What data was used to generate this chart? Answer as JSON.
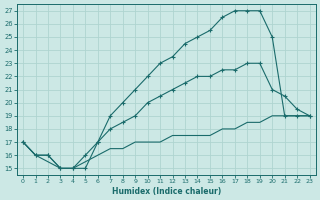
{
  "xlabel": "Humidex (Indice chaleur)",
  "bg_color": "#cce8e5",
  "line_color": "#1a6b6b",
  "grid_color": "#afd4d0",
  "xlim": [
    -0.5,
    23.5
  ],
  "ylim": [
    14.5,
    27.5
  ],
  "xticks": [
    0,
    1,
    2,
    3,
    4,
    5,
    6,
    7,
    8,
    9,
    10,
    11,
    12,
    13,
    14,
    15,
    16,
    17,
    18,
    19,
    20,
    21,
    22,
    23
  ],
  "yticks": [
    15,
    16,
    17,
    18,
    19,
    20,
    21,
    22,
    23,
    24,
    25,
    26,
    27
  ],
  "line1_x": [
    0,
    1,
    2,
    3,
    4,
    5,
    6,
    7,
    8,
    9,
    10,
    11,
    12,
    13,
    14,
    15,
    16,
    17,
    18,
    19,
    20,
    21,
    22,
    23
  ],
  "line1_y": [
    17,
    16,
    16,
    15,
    15,
    15,
    17,
    19,
    20,
    21,
    22,
    23,
    23.5,
    24.5,
    25,
    25.5,
    26.5,
    27,
    27,
    27,
    25,
    19,
    19,
    19
  ],
  "line2_x": [
    0,
    1,
    2,
    3,
    4,
    5,
    6,
    7,
    8,
    9,
    10,
    11,
    12,
    13,
    14,
    15,
    16,
    17,
    18,
    19,
    20,
    21,
    22,
    23
  ],
  "line2_y": [
    17,
    16,
    16,
    15,
    15,
    16,
    17,
    18,
    18.5,
    19,
    20,
    20.5,
    21,
    21.5,
    22,
    22,
    22.5,
    22.5,
    23,
    23,
    21,
    20.5,
    19.5,
    19
  ],
  "line3_x": [
    0,
    1,
    2,
    3,
    4,
    5,
    6,
    7,
    8,
    9,
    10,
    11,
    12,
    13,
    14,
    15,
    16,
    17,
    18,
    19,
    20,
    21,
    22,
    23
  ],
  "line3_y": [
    17,
    16,
    15.5,
    15,
    15,
    15.5,
    16,
    16.5,
    16.5,
    17,
    17,
    17,
    17.5,
    17.5,
    17.5,
    17.5,
    18,
    18,
    18.5,
    18.5,
    19,
    19,
    19,
    19
  ]
}
